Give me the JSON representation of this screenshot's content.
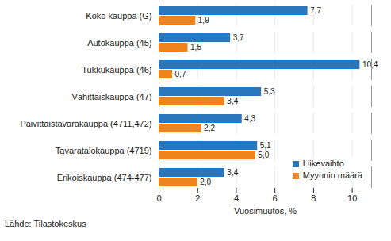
{
  "chart_data": {
    "type": "bar",
    "orientation": "horizontal",
    "categories": [
      "Koko kauppa (G)",
      "Autokauppa (45)",
      "Tukkukauppa (46)",
      "Vähittäiskauppa (47)",
      "Päivittäistavarakauppa (4711,472)",
      "Tavaratalokauppa (4719)",
      "Erikoiskauppa (474-477)"
    ],
    "series": [
      {
        "name": "Liikevaihto",
        "color": "#2a76bd",
        "values": [
          7.7,
          3.7,
          10.4,
          5.3,
          4.3,
          5.1,
          3.4
        ],
        "value_labels": [
          "7,7",
          "3,7",
          "10,4",
          "5,3",
          "4,3",
          "5,1",
          "3,4"
        ]
      },
      {
        "name": "Myynnin määrä",
        "color": "#f0841c",
        "values": [
          1.9,
          1.5,
          0.7,
          3.4,
          2.2,
          5.0,
          2.0
        ],
        "value_labels": [
          "1,9",
          "1,5",
          "0,7",
          "3,4",
          "2,2",
          "5,0",
          "2,0"
        ]
      }
    ],
    "xlabel": "Vuosimuutos, %",
    "xlim": [
      0,
      11
    ],
    "xticks": [
      0,
      2,
      4,
      6,
      8,
      10
    ],
    "grid": true,
    "legend": "bottom-right",
    "data_labels": true,
    "caption": "Lähde: Tilastokeskus"
  }
}
